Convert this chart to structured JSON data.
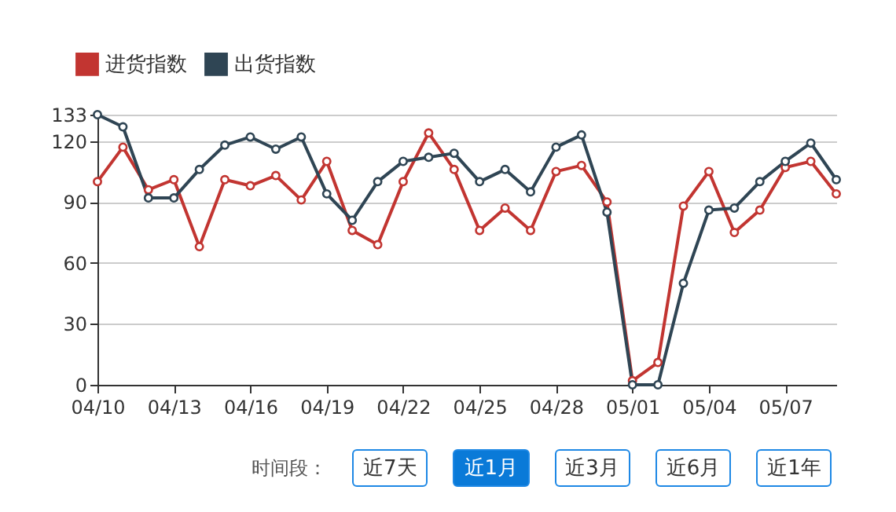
{
  "chart_data": {
    "type": "line",
    "categories": [
      "04/10",
      null,
      null,
      "04/13",
      null,
      null,
      "04/16",
      null,
      null,
      "04/19",
      null,
      null,
      "04/22",
      null,
      null,
      "04/25",
      null,
      null,
      "04/28",
      null,
      null,
      "05/01",
      null,
      null,
      "05/04",
      null,
      null,
      "05/07",
      null,
      null
    ],
    "series": [
      {
        "name": "进货指数",
        "color": "#c23531",
        "values": [
          100,
          117,
          96,
          101,
          68,
          101,
          98,
          103,
          91,
          110,
          76,
          69,
          100,
          124,
          106,
          76,
          87,
          76,
          105,
          108,
          90,
          2,
          11,
          88,
          105,
          75,
          86,
          107,
          110,
          94
        ]
      },
      {
        "name": "出货指数",
        "color": "#2f4554",
        "values": [
          133,
          127,
          92,
          92,
          106,
          118,
          122,
          116,
          122,
          94,
          81,
          100,
          110,
          112,
          114,
          100,
          106,
          95,
          117,
          123,
          85,
          0,
          0,
          50,
          86,
          87,
          100,
          110,
          119,
          101
        ]
      }
    ],
    "ylim": [
      0,
      133
    ],
    "yticks": [
      0,
      30,
      60,
      90,
      120,
      133
    ],
    "grid": "y",
    "legend": "top left",
    "marker": "circle",
    "line_style": "solid",
    "annotations": [
      "时间段：",
      "近7天",
      "近1月",
      "近3月",
      "近6月",
      "近1年"
    ]
  }
}
